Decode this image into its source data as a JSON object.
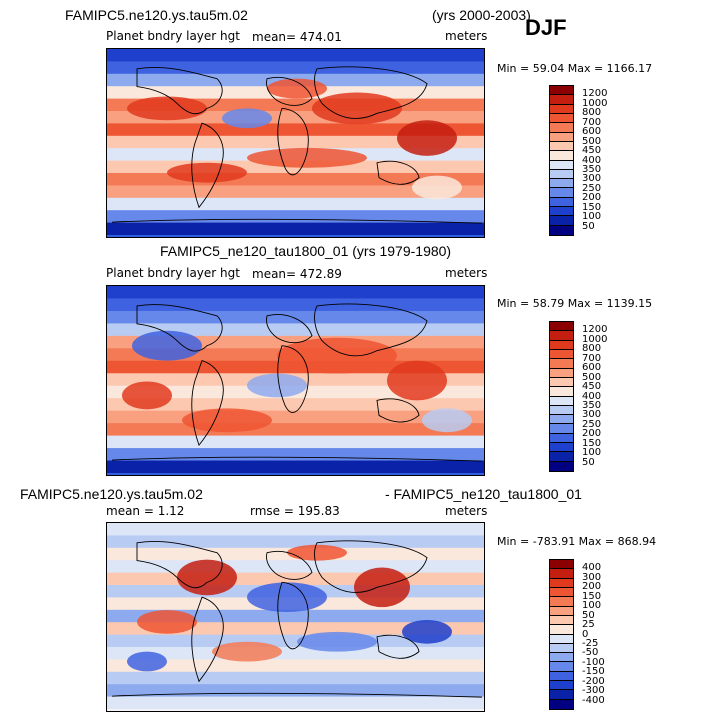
{
  "season": "DJF",
  "panels": [
    {
      "left_title": "FAMIPC5.ne120.ys.tau5m.02",
      "right_title": "(yrs 2000-2003)",
      "variable": "Planet bndry layer hgt",
      "stat": "mean= 474.01",
      "units": "meters",
      "minmax": "Min =  59.04 Max = 1166.17"
    },
    {
      "center_title": "FAMIPC5_ne120_tau1800_01 (yrs 1979-1980)",
      "variable": "Planet bndry layer hgt",
      "stat": "mean= 472.89",
      "units": "meters",
      "minmax": "Min =  58.79 Max = 1139.15"
    },
    {
      "left_title": "FAMIPC5.ne120.ys.tau5m.02",
      "right_title": "- FAMIPC5_ne120_tau1800_01",
      "stat": "mean =   1.12",
      "rmse": "rmse = 195.83",
      "units": "meters",
      "minmax": "Min = -783.91 Max = 868.94"
    }
  ],
  "chart_data": [
    {
      "type": "heatmap",
      "title": "FAMIPC5.ne120.ys.tau5m.02 (yrs 2000-2003) DJF",
      "variable": "Planet bndry layer hgt",
      "units": "meters",
      "mean": 474.01,
      "min": 59.04,
      "max": 1166.17,
      "colorbar_levels": [
        "1200",
        "1000",
        "800",
        "700",
        "600",
        "500",
        "450",
        "400",
        "350",
        "300",
        "250",
        "200",
        "150",
        "100",
        "50"
      ],
      "colorbar_colors": [
        "#8b0000",
        "#c41e10",
        "#e03a1e",
        "#ee5533",
        "#f47a55",
        "#f9a080",
        "#fcc8b0",
        "#fbe8dc",
        "#dde6f7",
        "#b8cbf2",
        "#8eaaee",
        "#6688ea",
        "#3f63e0",
        "#1f40cc",
        "#0a22a8",
        "#000080"
      ]
    },
    {
      "type": "heatmap",
      "title": "FAMIPC5_ne120_tau1800_01 (yrs 1979-1980)",
      "variable": "Planet bndry layer hgt",
      "units": "meters",
      "mean": 472.89,
      "min": 58.79,
      "max": 1139.15,
      "colorbar_levels": [
        "1200",
        "1000",
        "800",
        "700",
        "600",
        "500",
        "450",
        "400",
        "350",
        "300",
        "250",
        "200",
        "150",
        "100",
        "50"
      ],
      "colorbar_colors": [
        "#8b0000",
        "#c41e10",
        "#e03a1e",
        "#ee5533",
        "#f47a55",
        "#f9a080",
        "#fcc8b0",
        "#fbe8dc",
        "#dde6f7",
        "#b8cbf2",
        "#8eaaee",
        "#6688ea",
        "#3f63e0",
        "#1f40cc",
        "#0a22a8",
        "#000080"
      ]
    },
    {
      "type": "heatmap",
      "title": "FAMIPC5.ne120.ys.tau5m.02 - FAMIPC5_ne120_tau1800_01",
      "units": "meters",
      "mean": 1.12,
      "rmse": 195.83,
      "min": -783.91,
      "max": 868.94,
      "colorbar_levels": [
        "400",
        "300",
        "200",
        "150",
        "100",
        "50",
        "25",
        "0",
        "-25",
        "-50",
        "-100",
        "-150",
        "-200",
        "-300",
        "-400"
      ],
      "colorbar_colors": [
        "#8b0000",
        "#c41e10",
        "#e03a1e",
        "#ee5533",
        "#f47a55",
        "#f9a080",
        "#fcc8b0",
        "#fbe8dc",
        "#dde6f7",
        "#b8cbf2",
        "#8eaaee",
        "#6688ea",
        "#3f63e0",
        "#1f40cc",
        "#0a22a8",
        "#000080"
      ]
    }
  ]
}
